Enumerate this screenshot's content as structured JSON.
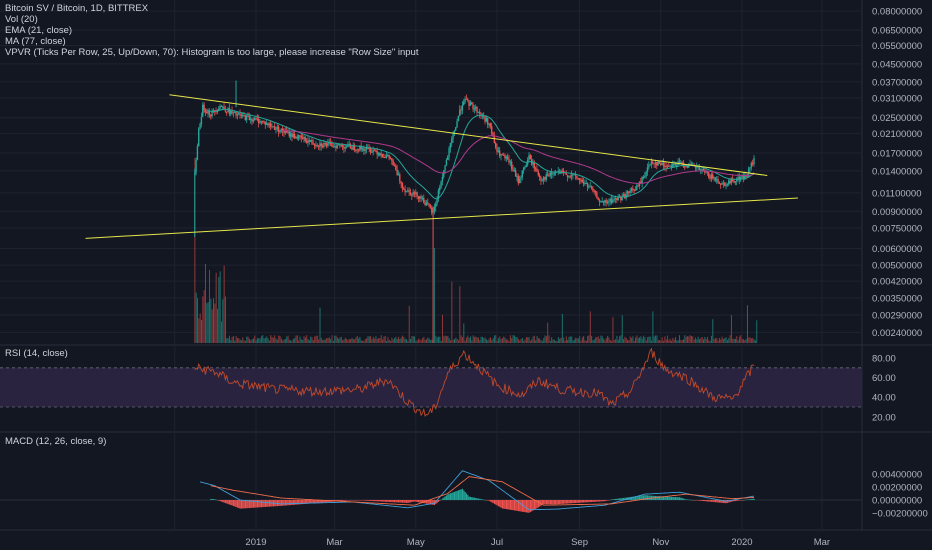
{
  "header": {
    "symbol_line": "Bitcoin SV / Bitcoin, 1D, BITTREX",
    "indicators": [
      "Vol (20)",
      "EMA (21, close)",
      "MA (77, close)",
      "VPVR (Ticks Per Row, 25, Up/Down, 70): Histogram is too large, please increase \"Row Size\" input"
    ]
  },
  "rsi_label": "RSI (14, close)",
  "macd_label": "MACD (12, 26, close, 9)",
  "colors": {
    "background": "#131722",
    "grid": "#1f2330",
    "up": "#26a69a",
    "down": "#ef5350",
    "ema": "#26a69a",
    "ma": "#b03a8c",
    "trendline": "#e6e64a",
    "rsi": "#c04a2a",
    "rsi_band": "#2a2340",
    "macd": "#3f9fd8",
    "signal": "#ef6c4a"
  },
  "chart_data": [
    {
      "type": "candlestick",
      "title": "Bitcoin SV / Bitcoin, 1D, BITTREX",
      "y_scale": "log",
      "y_ticks": [
        "0.08000000",
        "0.06500000",
        "0.05500000",
        "0.04500000",
        "0.03700000",
        "0.03100000",
        "0.02500000",
        "0.02100000",
        "0.01700000",
        "0.01400000",
        "0.01100000",
        "0.00900000",
        "0.00750000",
        "0.00600000",
        "0.00500000",
        "0.00420000",
        "0.00350000",
        "0.00290000",
        "0.00240000"
      ],
      "x_ticks": [
        "2019",
        "Mar",
        "May",
        "Jul",
        "Sep",
        "Nov",
        "2020",
        "Mar"
      ],
      "close_path": [
        {
          "date": "2018-11-16",
          "value": 0.0135
        },
        {
          "date": "2018-11-19",
          "value": 0.022
        },
        {
          "date": "2018-11-22",
          "value": 0.028
        },
        {
          "date": "2018-11-28",
          "value": 0.026
        },
        {
          "date": "2018-12-05",
          "value": 0.0285
        },
        {
          "date": "2018-12-15",
          "value": 0.026
        },
        {
          "date": "2019-01-05",
          "value": 0.024
        },
        {
          "date": "2019-01-25",
          "value": 0.021
        },
        {
          "date": "2019-02-15",
          "value": 0.0188
        },
        {
          "date": "2019-03-10",
          "value": 0.0183
        },
        {
          "date": "2019-03-31",
          "value": 0.0175
        },
        {
          "date": "2019-04-12",
          "value": 0.016
        },
        {
          "date": "2019-04-22",
          "value": 0.0115
        },
        {
          "date": "2019-05-05",
          "value": 0.0105
        },
        {
          "date": "2019-05-14",
          "value": 0.0088
        },
        {
          "date": "2019-05-20",
          "value": 0.0125
        },
        {
          "date": "2019-05-28",
          "value": 0.0195
        },
        {
          "date": "2019-06-02",
          "value": 0.0255
        },
        {
          "date": "2019-06-06",
          "value": 0.0305
        },
        {
          "date": "2019-06-15",
          "value": 0.0275
        },
        {
          "date": "2019-06-25",
          "value": 0.0235
        },
        {
          "date": "2019-07-01",
          "value": 0.0172
        },
        {
          "date": "2019-07-10",
          "value": 0.0155
        },
        {
          "date": "2019-07-17",
          "value": 0.0125
        },
        {
          "date": "2019-07-25",
          "value": 0.0162
        },
        {
          "date": "2019-08-03",
          "value": 0.0128
        },
        {
          "date": "2019-08-15",
          "value": 0.0138
        },
        {
          "date": "2019-08-28",
          "value": 0.0132
        },
        {
          "date": "2019-09-08",
          "value": 0.0118
        },
        {
          "date": "2019-09-18",
          "value": 0.0098
        },
        {
          "date": "2019-10-03",
          "value": 0.0105
        },
        {
          "date": "2019-10-15",
          "value": 0.0118
        },
        {
          "date": "2019-10-25",
          "value": 0.0155
        },
        {
          "date": "2019-11-05",
          "value": 0.0148
        },
        {
          "date": "2019-11-15",
          "value": 0.0152
        },
        {
          "date": "2019-11-28",
          "value": 0.0145
        },
        {
          "date": "2019-12-08",
          "value": 0.0132
        },
        {
          "date": "2019-12-18",
          "value": 0.0121
        },
        {
          "date": "2019-12-28",
          "value": 0.0128
        },
        {
          "date": "2020-01-04",
          "value": 0.0132
        },
        {
          "date": "2020-01-10",
          "value": 0.0158
        }
      ],
      "trendlines": [
        {
          "name": "upper",
          "from": {
            "date": "2018-10-28",
            "value": 0.0321
          },
          "to": {
            "date": "2020-01-20",
            "value": 0.0133
          }
        },
        {
          "name": "lower",
          "from": {
            "date": "2018-08-26",
            "value": 0.0067
          },
          "to": {
            "date": "2020-02-12",
            "value": 0.0104
          }
        }
      ]
    },
    {
      "type": "line",
      "title": "RSI (14, close)",
      "y_ticks": [
        "80.00",
        "60.00",
        "40.00",
        "20.00"
      ],
      "bands": [
        70,
        30
      ],
      "path": [
        {
          "date": "2018-11-16",
          "value": 70
        },
        {
          "date": "2018-12-01",
          "value": 66
        },
        {
          "date": "2018-12-15",
          "value": 55
        },
        {
          "date": "2019-01-15",
          "value": 48
        },
        {
          "date": "2019-02-15",
          "value": 46
        },
        {
          "date": "2019-03-20",
          "value": 48
        },
        {
          "date": "2019-04-10",
          "value": 58
        },
        {
          "date": "2019-04-25",
          "value": 35
        },
        {
          "date": "2019-05-08",
          "value": 22
        },
        {
          "date": "2019-05-15",
          "value": 28
        },
        {
          "date": "2019-05-25",
          "value": 64
        },
        {
          "date": "2019-06-06",
          "value": 85
        },
        {
          "date": "2019-06-18",
          "value": 70
        },
        {
          "date": "2019-07-01",
          "value": 52
        },
        {
          "date": "2019-07-20",
          "value": 42
        },
        {
          "date": "2019-08-01",
          "value": 57
        },
        {
          "date": "2019-08-20",
          "value": 47
        },
        {
          "date": "2019-09-15",
          "value": 44
        },
        {
          "date": "2019-09-25",
          "value": 32
        },
        {
          "date": "2019-10-10",
          "value": 47
        },
        {
          "date": "2019-10-25",
          "value": 86
        },
        {
          "date": "2019-11-05",
          "value": 68
        },
        {
          "date": "2019-11-20",
          "value": 60
        },
        {
          "date": "2019-12-10",
          "value": 40
        },
        {
          "date": "2019-12-25",
          "value": 38
        },
        {
          "date": "2020-01-10",
          "value": 72
        }
      ]
    },
    {
      "type": "line",
      "title": "MACD (12, 26, close, 9)",
      "y_ticks": [
        "0.00400000",
        "0.00200000",
        "0.00000000",
        "−0.00200000"
      ],
      "macd": [
        {
          "date": "2018-11-20",
          "value": 0.0028
        },
        {
          "date": "2018-12-01",
          "value": 0.0022
        },
        {
          "date": "2018-12-20",
          "value": 0.0
        },
        {
          "date": "2019-01-20",
          "value": -0.0006
        },
        {
          "date": "2019-03-15",
          "value": -0.0003
        },
        {
          "date": "2019-04-25",
          "value": -0.0012
        },
        {
          "date": "2019-05-15",
          "value": -0.0005
        },
        {
          "date": "2019-06-05",
          "value": 0.0045
        },
        {
          "date": "2019-06-25",
          "value": 0.003
        },
        {
          "date": "2019-07-25",
          "value": -0.0015
        },
        {
          "date": "2019-08-15",
          "value": -0.0014
        },
        {
          "date": "2019-09-20",
          "value": -0.0008
        },
        {
          "date": "2019-10-20",
          "value": 0.0009
        },
        {
          "date": "2019-11-15",
          "value": 0.0012
        },
        {
          "date": "2019-12-20",
          "value": -0.0002
        },
        {
          "date": "2020-01-10",
          "value": 0.0006
        }
      ],
      "signal": [
        {
          "date": "2018-11-28",
          "value": 0.0022
        },
        {
          "date": "2018-12-15",
          "value": 0.0015
        },
        {
          "date": "2019-01-20",
          "value": 0.0003
        },
        {
          "date": "2019-03-15",
          "value": -0.0003
        },
        {
          "date": "2019-04-30",
          "value": -0.0008
        },
        {
          "date": "2019-05-25",
          "value": 0.001
        },
        {
          "date": "2019-06-10",
          "value": 0.0036
        },
        {
          "date": "2019-07-05",
          "value": 0.0028
        },
        {
          "date": "2019-08-05",
          "value": -0.0008
        },
        {
          "date": "2019-09-25",
          "value": -0.0006
        },
        {
          "date": "2019-10-25",
          "value": 0.0003
        },
        {
          "date": "2019-11-20",
          "value": 0.0009
        },
        {
          "date": "2019-12-25",
          "value": 0.0002
        },
        {
          "date": "2020-01-10",
          "value": 0.0004
        }
      ]
    }
  ]
}
